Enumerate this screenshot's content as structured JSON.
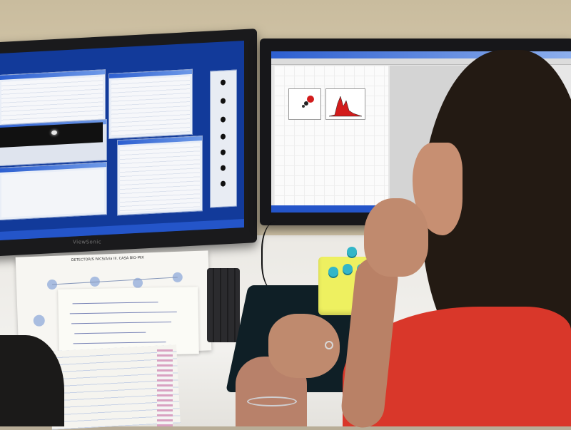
{
  "photo": {
    "monitor_brand": "ViewSonic",
    "document_title": "DETECTOR/S FACS/Aria III. CASA BIO-MIX",
    "colors": {
      "wall": "#cfc2a6",
      "desk": "#efede9",
      "screen_blue": "#123a9a",
      "sweater": "#d9372a",
      "tube_rack": "#eef060",
      "tube_cap": "#33b6c8"
    }
  }
}
